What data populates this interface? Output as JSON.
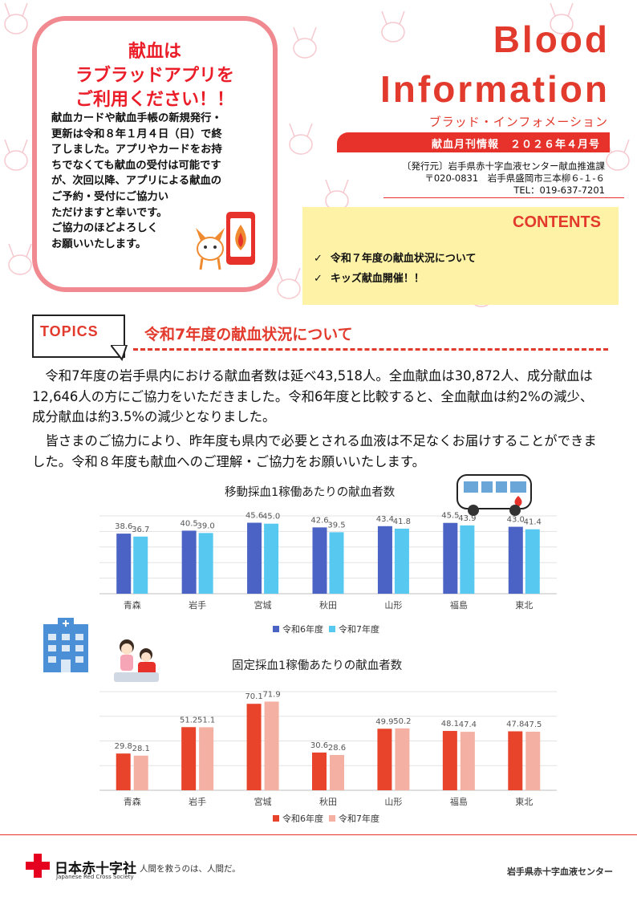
{
  "notice": {
    "title": "献血は\nラブラッドアプリを\nご利用ください！！",
    "body": "献血カードや献血手帳の新規発行・\n更新は令和８年１月４日（日）で終\n了しました。アプリやカードをお持\nちでなくても献血の受付は可能です\nが、次回以降、アプリによる献血の\nご予約・受付にご協力い\nただけますと幸いです。\nご協力のほどよろしく\nお願いいたします。"
  },
  "header": {
    "title_line1": "Blood",
    "title_line2": "Information",
    "subtitle": "ブラッド・インフォメーション",
    "issue": "献血月刊情報　２０２６年４月号",
    "publisher": "〔発行元〕岩手県赤十字血液センター献血推進課",
    "address": "〒020-0831　岩手県盛岡市三本柳６-１-６",
    "tel": "TEL：019-637-7201"
  },
  "contents": {
    "heading": "CONTENTS",
    "items": [
      "令和７年度の献血状況について",
      "キッズ献血開催！！"
    ]
  },
  "topics": {
    "label": "TOPICS",
    "heading": "令和7年度の献血状況について",
    "paragraph1": "令和7年度の岩手県内における献血者数は延べ43,518人。全血献血は30,872人、成分献血は12,646人の方にご協力をいただきました。令和6年度と比較すると、全血献血は約2%の減少、成分献血は約3.5%の減少となりました。",
    "paragraph2": "皆さまのご協力により、昨年度も県内で必要とされる血液は不足なくお届けすることができました。令和８年度も献血へのご理解・ご協力をお願いいたします。"
  },
  "chart_data": [
    {
      "type": "bar",
      "title": "移動採血1稼働あたりの献血者数",
      "categories": [
        "青森",
        "岩手",
        "宮城",
        "秋田",
        "山形",
        "福島",
        "東北"
      ],
      "series": [
        {
          "name": "令和6年度",
          "values": [
            38.6,
            40.5,
            45.6,
            42.6,
            43.4,
            45.5,
            43.0
          ],
          "color": "#4a63c4"
        },
        {
          "name": "令和7年度",
          "values": [
            36.7,
            39.0,
            45.0,
            39.5,
            41.8,
            43.9,
            41.4
          ],
          "color": "#57c8f0"
        }
      ],
      "ylim": [
        0,
        50
      ],
      "grid": true,
      "legend": "bottom"
    },
    {
      "type": "bar",
      "title": "固定採血1稼働あたりの献血者数",
      "categories": [
        "青森",
        "岩手",
        "宮城",
        "秋田",
        "山形",
        "福島",
        "東北"
      ],
      "series": [
        {
          "name": "令和6年度",
          "values": [
            29.8,
            51.2,
            70.1,
            30.6,
            49.9,
            48.1,
            47.8
          ],
          "color": "#e8442c"
        },
        {
          "name": "令和7年度",
          "values": [
            28.1,
            51.1,
            71.9,
            28.6,
            50.2,
            47.4,
            47.5
          ],
          "color": "#f4b0a2"
        }
      ],
      "ylim": [
        0,
        80
      ],
      "grid": true,
      "legend": "bottom"
    }
  ],
  "footer": {
    "org_name": "日本赤十字社",
    "org_name_en": "Japanese Red Cross Society",
    "motto": "人間を救うのは、人間だ。",
    "center": "岩手県赤十字血液センター"
  }
}
